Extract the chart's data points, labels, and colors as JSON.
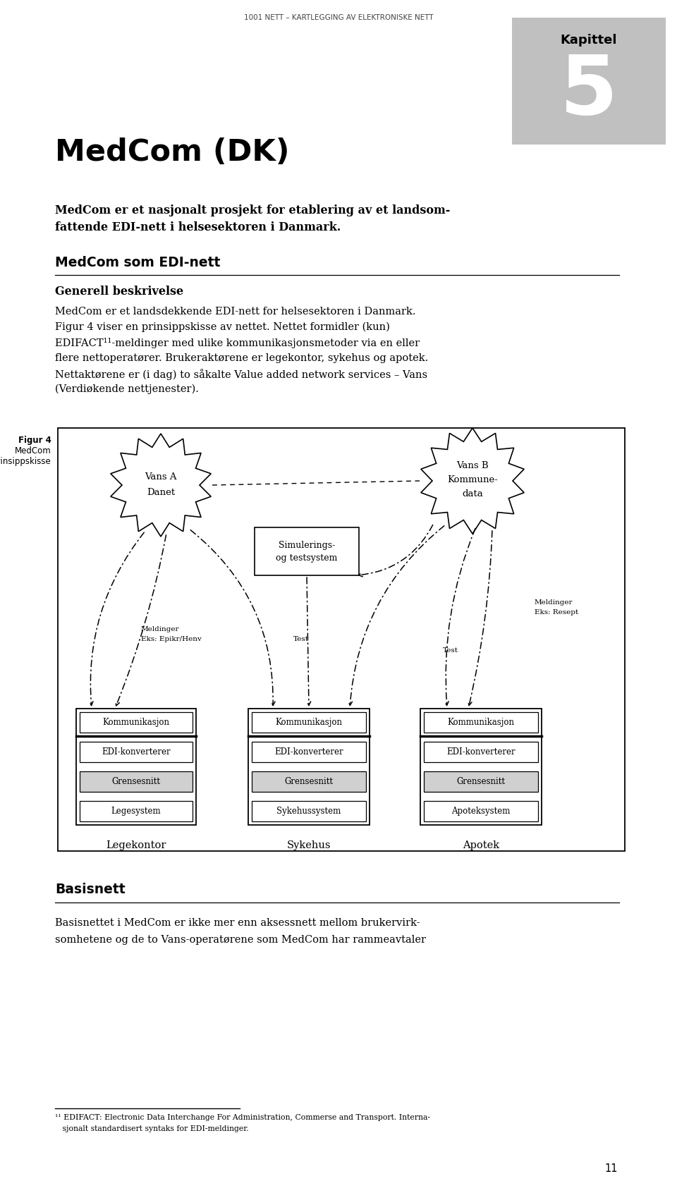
{
  "header_text": "1001 NETT – KARTLEGGING AV ELEKTRONISKE NETT",
  "kapittel_text": "Kapittel",
  "chapter_number": "5",
  "chapter_bg": "#c0c0c0",
  "title_text": "MedCom (DK)",
  "subtitle_line1": "MedCom er et nasjonalt prosjekt for etablering av et landsom-",
  "subtitle_line2": "fattende EDI-nett i helsesektoren i Danmark.",
  "section_heading1": "MedCom som EDI-nett",
  "subsection_heading1": "Generell beskrivelse",
  "body1_lines": [
    "MedCom er et landsdekkende EDI-nett for helsesektoren i Danmark.",
    "Figur 4 viser en prinsippskisse av nettet. Nettet formidler (kun)",
    "EDIFACT¹¹-meldinger med ulike kommunikasjonsmetoder via en eller",
    "flere nettoperatører. Brukeraktørene er legekontor, sykehus og apotek.",
    "Nettaktørene er (i dag) to såkalte Value added network services – Vans",
    "(Verdiøkende nettjenester)."
  ],
  "fig_label_lines": [
    "Figur 4",
    "MedCom",
    "prinsippskisse"
  ],
  "vans_a_l1": "Vans A",
  "vans_a_l2": "Danet",
  "vans_b_l1": "Vans B",
  "vans_b_l2": "Kommune-",
  "vans_b_l3": "data",
  "sim_l1": "Simulerings-",
  "sim_l2": "og testsystem",
  "meld_left_l1": "Meldinger",
  "meld_left_l2": "Eks: Epikr/Henv",
  "meld_right_l1": "Meldinger",
  "meld_right_l2": "Eks: Resept",
  "test_label": "Test",
  "boxes_left": [
    "Kommunikasjon",
    "EDI-konverterer",
    "Grensesnitt",
    "Legesystem"
  ],
  "boxes_mid": [
    "Kommunikasjon",
    "EDI-konverterer",
    "Grensesnitt",
    "Sykehussystem"
  ],
  "boxes_right": [
    "Kommunikasjon",
    "EDI-konverterer",
    "Grensesnitt",
    "Apoteksystem"
  ],
  "label_left": "Legekontor",
  "label_mid": "Sykehus",
  "label_right": "Apotek",
  "section_heading2": "Basisnett",
  "body2_lines": [
    "Basisnettet i MedCom er ikke mer enn aksessnett mellom brukervirk-",
    "somhetene og de to Vans-operatørene som MedCom har rammeavtaler"
  ],
  "footnote_l1": "¹¹ EDIFACT: Electronic Data Interchange For Administration, Commerse and Transport. Interna-",
  "footnote_l2": "   sjonalt standardisert syntaks for EDI-meldinger.",
  "page_number": "11",
  "bg_color": "#ffffff",
  "grensesnitt_bg": "#d0d0d0"
}
